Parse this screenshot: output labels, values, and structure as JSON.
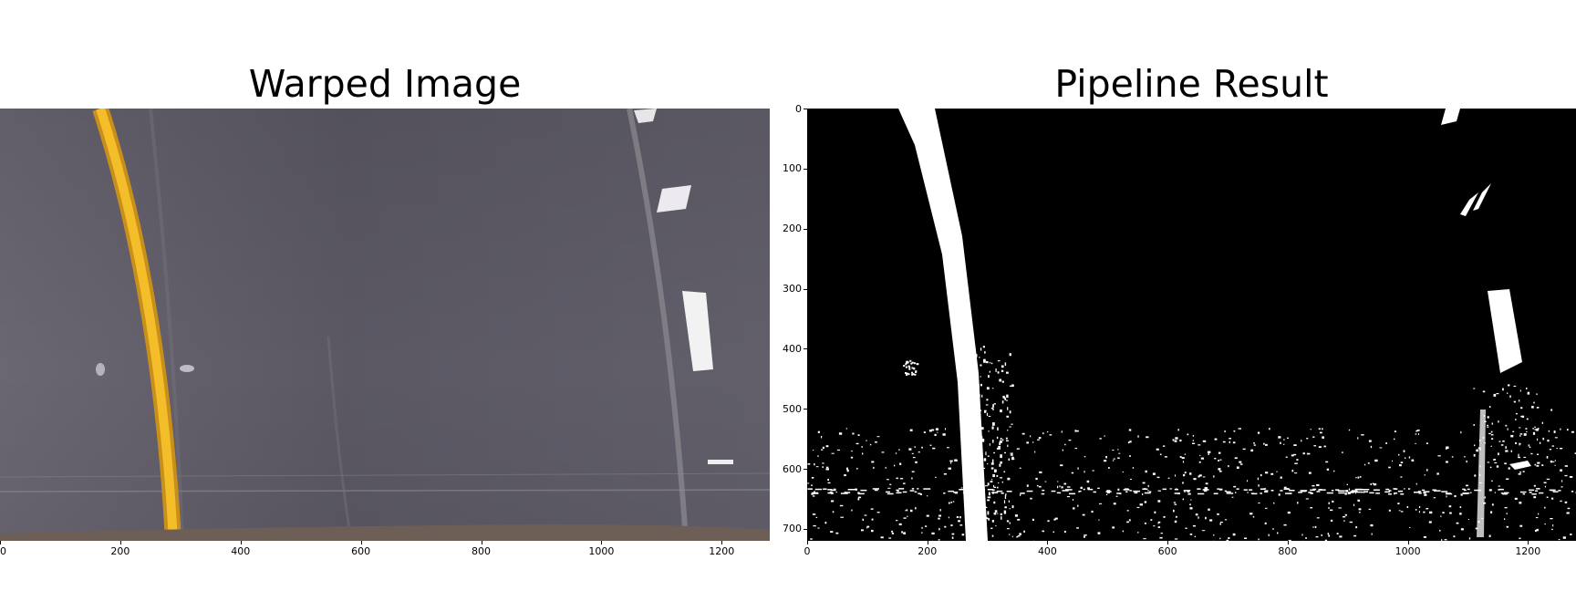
{
  "left_panel": {
    "title": "Warped Image",
    "x_ticks": [
      "0",
      "200",
      "400",
      "600",
      "800",
      "1000",
      "1200"
    ],
    "x_tick_values": [
      0,
      200,
      400,
      600,
      800,
      1000,
      1200
    ],
    "x_range": [
      0,
      1280
    ],
    "colors": {
      "road": "#5f5c66",
      "lane_yellow": "#f2b51c",
      "lane_white": "#e8e8e8"
    }
  },
  "right_panel": {
    "title": "Pipeline Result",
    "x_ticks": [
      "0",
      "200",
      "400",
      "600",
      "800",
      "1000",
      "1200"
    ],
    "x_tick_values": [
      0,
      200,
      400,
      600,
      800,
      1000,
      1200
    ],
    "x_range": [
      0,
      1280
    ],
    "y_ticks": [
      "0",
      "100",
      "200",
      "300",
      "400",
      "500",
      "600",
      "700"
    ],
    "y_tick_values": [
      0,
      100,
      200,
      300,
      400,
      500,
      600,
      700
    ],
    "y_range": [
      0,
      720
    ],
    "colors": {
      "background": "#000000",
      "foreground": "#ffffff"
    }
  }
}
